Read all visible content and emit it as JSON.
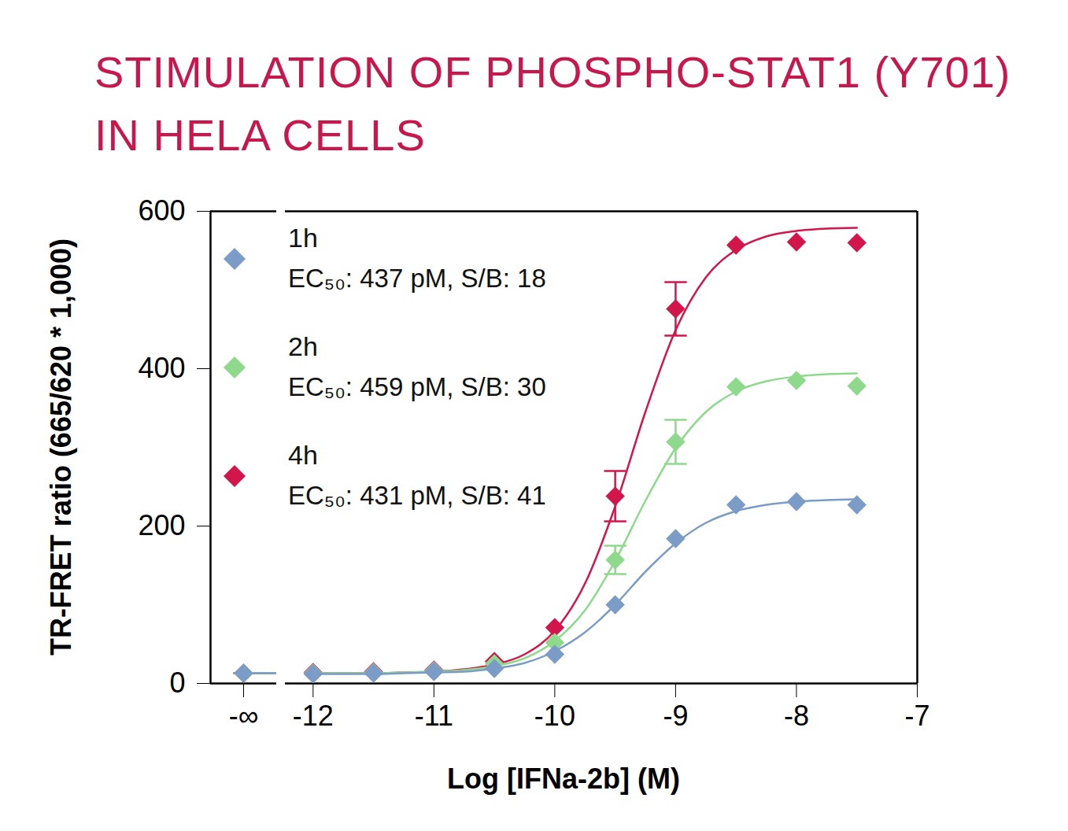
{
  "chart_data": {
    "type": "scatter",
    "title": "STIMULATION OF PHOSPHO-STAT1 (Y701)\nIN HELA CELLS",
    "x_label": "Log [IFNa-2b] (M)",
    "y_label": "TR-FRET ratio (665/620 * 1,000)",
    "x_zero_label": "-∞",
    "x": [
      -12,
      -11.5,
      -11,
      -10.5,
      -10,
      -9.5,
      -9,
      -8.5,
      -8,
      -7.5
    ],
    "fit_x": [
      -12,
      -11.75,
      -11.5,
      -11.25,
      -11,
      -10.75,
      -10.5,
      -10.25,
      -10,
      -9.75,
      -9.5,
      -9.25,
      -9,
      -8.75,
      -8.5,
      -8.25,
      -8,
      -7.75,
      -7.5
    ],
    "xlim": [
      -12.23,
      -7
    ],
    "xticks": [
      -12,
      -11,
      -10,
      -9,
      -8,
      -7
    ],
    "ylim": [
      0,
      600
    ],
    "yticks": [
      0,
      200,
      400,
      600
    ],
    "legend": "top-left",
    "series": [
      {
        "name": "1h",
        "color": "#7c9cc8",
        "marker": "diamond",
        "legend_text": "EC₅₀: 437 pM, S/B: 18",
        "zero_value": 13,
        "values": [
          12,
          13,
          15,
          19,
          37,
          100,
          184,
          227,
          231,
          227
        ],
        "fit": [
          12,
          12,
          12,
          13,
          14,
          15,
          19,
          26,
          41,
          65,
          100,
          142,
          178,
          204,
          219,
          227,
          231,
          233,
          234
        ]
      },
      {
        "name": "2h",
        "color": "#8ed98c",
        "marker": "diamond",
        "legend_text": "EC₅₀: 459 pM, S/B: 30",
        "zero_value": 13,
        "values": [
          13,
          14,
          16,
          25,
          52,
          157,
          307,
          377,
          385,
          378
        ],
        "errors": [
          null,
          null,
          null,
          null,
          null,
          18,
          28,
          null,
          null,
          null
        ],
        "fit": [
          13,
          13,
          13,
          14,
          15,
          17,
          22,
          32,
          54,
          93,
          156,
          232,
          299,
          345,
          371,
          384,
          390,
          393,
          394
        ]
      },
      {
        "name": "4h",
        "color": "#d2164c",
        "marker": "diamond",
        "legend_text": "EC₅₀: 431 pM, S/B: 41",
        "zero_value": 13,
        "values": [
          14,
          15,
          17,
          28,
          71,
          238,
          476,
          557,
          561,
          560
        ],
        "errors": [
          null,
          null,
          null,
          null,
          null,
          32,
          34,
          null,
          null,
          null
        ],
        "fit": [
          13,
          13,
          13,
          14,
          15,
          18,
          24,
          37,
          67,
          127,
          225,
          345,
          449,
          516,
          551,
          568,
          575,
          578,
          579
        ]
      }
    ]
  }
}
